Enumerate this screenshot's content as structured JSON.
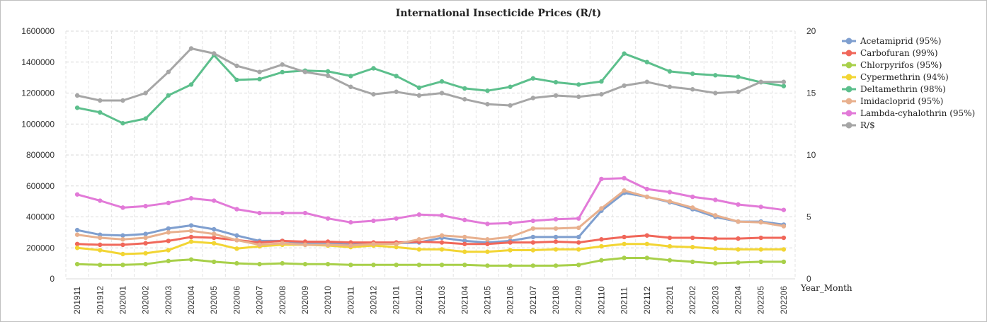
{
  "chart_data": {
    "type": "line",
    "title": "International Insecticide Prices (R/t)",
    "xlabel": "Year_Month",
    "ylabel": "",
    "y2label": "",
    "ylim": [
      0,
      1600000
    ],
    "y2lim": [
      0,
      20
    ],
    "yticks": [
      "0",
      "200000",
      "400000",
      "600000",
      "800000",
      "1000000",
      "1200000",
      "1400000",
      "1600000"
    ],
    "y2ticks": [
      "0",
      "5",
      "10",
      "15",
      "20"
    ],
    "legend_position": "right",
    "grid": true,
    "categories": [
      "201911",
      "201912",
      "202001",
      "202002",
      "202003",
      "202004",
      "202005",
      "202006",
      "202007",
      "202008",
      "202009",
      "202010",
      "202011",
      "202012",
      "202101",
      "202102",
      "202103",
      "202104",
      "202105",
      "202106",
      "202107",
      "202108",
      "202109",
      "202110",
      "202111",
      "202112",
      "202201",
      "202202",
      "202203",
      "202204",
      "202205",
      "202206"
    ],
    "series": [
      {
        "name": "Acetamiprid (95%)",
        "color": "#7f9fcf",
        "axis": "left",
        "values": [
          315000,
          285000,
          280000,
          290000,
          325000,
          345000,
          320000,
          280000,
          245000,
          245000,
          230000,
          230000,
          220000,
          230000,
          230000,
          235000,
          265000,
          245000,
          235000,
          245000,
          270000,
          270000,
          270000,
          440000,
          555000,
          530000,
          495000,
          450000,
          400000,
          370000,
          370000,
          350000
        ]
      },
      {
        "name": "Carbofuran (99%)",
        "color": "#f0675a",
        "axis": "left",
        "values": [
          225000,
          220000,
          220000,
          230000,
          245000,
          270000,
          265000,
          250000,
          235000,
          245000,
          240000,
          240000,
          235000,
          235000,
          235000,
          240000,
          235000,
          225000,
          225000,
          235000,
          235000,
          240000,
          235000,
          255000,
          270000,
          280000,
          265000,
          265000,
          260000,
          260000,
          265000,
          265000
        ]
      },
      {
        "name": "Chlorpyrifos (95%)",
        "color": "#a8d04a",
        "axis": "left",
        "values": [
          95000,
          90000,
          90000,
          95000,
          115000,
          125000,
          110000,
          100000,
          95000,
          100000,
          95000,
          95000,
          90000,
          90000,
          90000,
          90000,
          90000,
          90000,
          85000,
          85000,
          85000,
          85000,
          90000,
          120000,
          135000,
          135000,
          120000,
          110000,
          100000,
          105000,
          110000,
          110000
        ]
      },
      {
        "name": "Cypermethrin (94%)",
        "color": "#f2d533",
        "axis": "left",
        "values": [
          200000,
          185000,
          160000,
          165000,
          185000,
          240000,
          230000,
          195000,
          210000,
          220000,
          220000,
          215000,
          205000,
          215000,
          205000,
          190000,
          190000,
          175000,
          175000,
          185000,
          185000,
          190000,
          190000,
          210000,
          225000,
          225000,
          210000,
          205000,
          195000,
          190000,
          190000,
          190000
        ]
      },
      {
        "name": "Deltamethrin (98%)",
        "color": "#5cbf8c",
        "axis": "left",
        "values": [
          1105000,
          1075000,
          1005000,
          1035000,
          1185000,
          1255000,
          1445000,
          1285000,
          1290000,
          1335000,
          1345000,
          1340000,
          1310000,
          1360000,
          1310000,
          1235000,
          1275000,
          1230000,
          1215000,
          1240000,
          1295000,
          1270000,
          1255000,
          1275000,
          1455000,
          1400000,
          1340000,
          1325000,
          1315000,
          1305000,
          1270000,
          1245000
        ]
      },
      {
        "name": "Imidacloprid (95%)",
        "color": "#e8b08e",
        "axis": "left",
        "values": [
          285000,
          265000,
          255000,
          265000,
          300000,
          310000,
          290000,
          250000,
          220000,
          230000,
          220000,
          220000,
          215000,
          225000,
          225000,
          255000,
          280000,
          270000,
          255000,
          270000,
          325000,
          325000,
          330000,
          455000,
          570000,
          530000,
          500000,
          460000,
          410000,
          370000,
          365000,
          340000
        ]
      },
      {
        "name": "Lambda-cyhalothrin (95%)",
        "color": "#e27ad8",
        "axis": "left",
        "values": [
          545000,
          505000,
          460000,
          470000,
          490000,
          520000,
          505000,
          450000,
          425000,
          425000,
          425000,
          390000,
          365000,
          375000,
          390000,
          415000,
          410000,
          380000,
          355000,
          360000,
          375000,
          385000,
          390000,
          645000,
          650000,
          580000,
          560000,
          530000,
          510000,
          480000,
          465000,
          445000
        ]
      },
      {
        "name": "R/$",
        "color": "#a6a6a6",
        "axis": "right",
        "values": [
          14.8,
          14.4,
          14.4,
          15.0,
          16.7,
          18.6,
          18.2,
          17.2,
          16.7,
          17.3,
          16.7,
          16.4,
          15.5,
          14.9,
          15.1,
          14.8,
          15.0,
          14.5,
          14.1,
          14.0,
          14.6,
          14.8,
          14.7,
          14.9,
          15.6,
          15.9,
          15.5,
          15.3,
          15.0,
          15.1,
          15.9,
          15.9
        ]
      }
    ]
  }
}
